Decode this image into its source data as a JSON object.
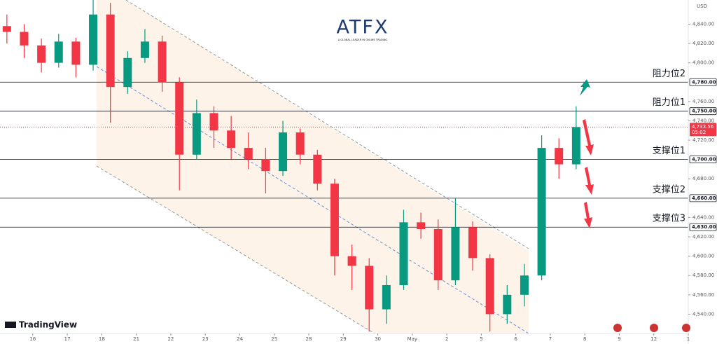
{
  "chart_data": {
    "type": "candlestick",
    "brand": "ATFX",
    "tagline": "A GLOBAL LEADER IN ONLINE TRADING",
    "platform": "TradingView",
    "currency": "USD",
    "up_color": "#089981",
    "down_color": "#f23645",
    "open": [
      4838,
      4832,
      4818,
      4800,
      4822,
      4798,
      4850,
      4775,
      4805,
      4822,
      4780,
      4705,
      4748,
      4730,
      4712,
      4700,
      4688,
      4728,
      4705,
      4675,
      4600,
      4590,
      4545,
      4570,
      4635,
      4628,
      4575,
      4630,
      4598,
      4540,
      4560,
      4580,
      4712,
      4695
    ],
    "high": [
      4850,
      4840,
      4825,
      4830,
      4826,
      4865,
      4862,
      4812,
      4835,
      4828,
      4785,
      4762,
      4755,
      4745,
      4728,
      4712,
      4740,
      4732,
      4710,
      4680,
      4612,
      4598,
      4580,
      4648,
      4645,
      4638,
      4660,
      4636,
      4602,
      4570,
      4592,
      4725,
      4722,
      4755
    ],
    "low": [
      4820,
      4805,
      4790,
      4795,
      4785,
      4792,
      4738,
      4768,
      4800,
      4770,
      4668,
      4700,
      4712,
      4700,
      4690,
      4665,
      4683,
      4695,
      4668,
      4580,
      4565,
      4522,
      4530,
      4565,
      4618,
      4565,
      4570,
      4585,
      4522,
      4530,
      4548,
      4575,
      4680,
      4690
    ],
    "close": [
      4832,
      4818,
      4800,
      4822,
      4798,
      4850,
      4775,
      4805,
      4822,
      4780,
      4705,
      4748,
      4730,
      4712,
      4700,
      4688,
      4728,
      4705,
      4675,
      4600,
      4590,
      4545,
      4570,
      4635,
      4628,
      4575,
      4630,
      4598,
      4540,
      4560,
      4580,
      4712,
      4695,
      4733.56
    ],
    "xlim": [
      -0.4,
      39.5
    ],
    "xticks": [
      {
        "value": 1.5,
        "label": "16"
      },
      {
        "value": 3.5,
        "label": "17"
      },
      {
        "value": 5.5,
        "label": "18"
      },
      {
        "value": 7.5,
        "label": "21"
      },
      {
        "value": 9.5,
        "label": "22"
      },
      {
        "value": 11.5,
        "label": "23"
      },
      {
        "value": 13.5,
        "label": "24"
      },
      {
        "value": 15.5,
        "label": "25"
      },
      {
        "value": 17.5,
        "label": "28"
      },
      {
        "value": 19.5,
        "label": "29"
      },
      {
        "value": 21.5,
        "label": "30"
      },
      {
        "value": 23.5,
        "label": "May"
      },
      {
        "value": 25.5,
        "label": "2"
      },
      {
        "value": 27.5,
        "label": "5"
      },
      {
        "value": 29.5,
        "label": "6"
      },
      {
        "value": 31.5,
        "label": "7"
      },
      {
        "value": 33.5,
        "label": "8"
      },
      {
        "value": 35.5,
        "label": "9"
      },
      {
        "value": 37.5,
        "label": "12"
      },
      {
        "value": 39.5,
        "label": "1"
      }
    ],
    "ylim": [
      4520,
      4865
    ],
    "yticks": [
      {
        "value": 4840,
        "label": "4,840.00"
      },
      {
        "value": 4820,
        "label": "4,820.00"
      },
      {
        "value": 4800,
        "label": "4,800.00"
      },
      {
        "value": 4760,
        "label": "4,760.00"
      },
      {
        "value": 4740,
        "label": "4,740.00"
      },
      {
        "value": 4720,
        "label": "4,720.00"
      },
      {
        "value": 4680,
        "label": "4,680.00"
      },
      {
        "value": 4640,
        "label": "4,640.00"
      },
      {
        "value": 4620,
        "label": "4,620.00"
      },
      {
        "value": 4600,
        "label": "4,600.00"
      },
      {
        "value": 4580,
        "label": "4,580.00"
      },
      {
        "value": 4560,
        "label": "4,560.00"
      },
      {
        "value": 4540,
        "label": "4,540.00"
      }
    ],
    "levels": [
      {
        "name": "阻力位2",
        "value": 4780,
        "label": "4,780.00"
      },
      {
        "name": "阻力位1",
        "value": 4750,
        "label": "4,750.00"
      },
      {
        "name": "支撑位1",
        "value": 4700,
        "label": "4,700.00"
      },
      {
        "name": "支撑位2",
        "value": 4660,
        "label": "4,660.00"
      },
      {
        "name": "支撑位3",
        "value": 4630,
        "label": "4,630.00"
      }
    ],
    "last_price": {
      "value": 4733.56,
      "label": "4,733.56"
    },
    "countdown": "05:02"
  }
}
